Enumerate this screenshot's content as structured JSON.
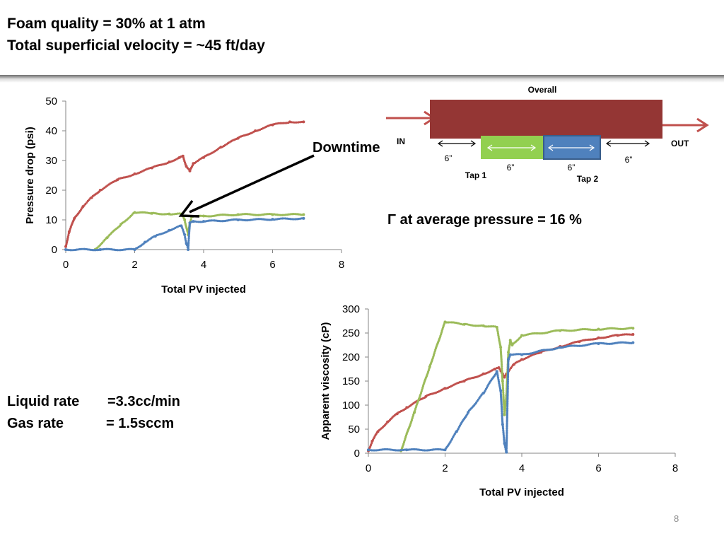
{
  "slide": {
    "title_line1": "Foam quality = 30% at 1 atm",
    "title_line2": "Total superficial velocity = ~45 ft/day",
    "gamma_text": "Γ at average pressure = 16 %",
    "liquid_rate_label": "Liquid rate",
    "liquid_rate_value": "=3.3cc/min",
    "gas_rate_label": "Gas rate",
    "gas_rate_value": "= 1.5sccm",
    "page_number": "8",
    "downtime_label": "Downtime"
  },
  "diagram": {
    "overall_label": "Overall",
    "in_label": "IN",
    "out_label": "OUT",
    "tap1_label": "Tap 1",
    "tap2_label": "Tap 2",
    "dim_labels": [
      "6”",
      "6”",
      "6”",
      "6”"
    ],
    "colors": {
      "core": "#943634",
      "tap1": "#92d050",
      "tap2": "#4f81bd",
      "arrow": "#c0504d"
    }
  },
  "chart_data": [
    {
      "type": "scatter",
      "xlabel": "Total PV injected",
      "ylabel": "Pressure drop (psi)",
      "xlim": [
        0,
        8
      ],
      "ylim": [
        0,
        50
      ],
      "xticks": [
        0,
        2,
        4,
        6,
        8
      ],
      "yticks": [
        0,
        10,
        20,
        30,
        40,
        50
      ],
      "grid": false,
      "annotation": "Downtime",
      "series": [
        {
          "color": "#c0504d",
          "points": [
            [
              0,
              1
            ],
            [
              0.1,
              6
            ],
            [
              0.25,
              10.5
            ],
            [
              0.5,
              14.5
            ],
            [
              0.75,
              17.5
            ],
            [
              1,
              20
            ],
            [
              1.5,
              23.5
            ],
            [
              2,
              25.5
            ],
            [
              2.5,
              27.5
            ],
            [
              3,
              29.5
            ],
            [
              3.3,
              31
            ],
            [
              3.4,
              31.5
            ],
            [
              3.5,
              28
            ],
            [
              3.6,
              26.5
            ],
            [
              3.7,
              29
            ],
            [
              4,
              31
            ],
            [
              4.5,
              34.5
            ],
            [
              5,
              37.5
            ],
            [
              5.5,
              40
            ],
            [
              6,
              42
            ],
            [
              6.5,
              43
            ],
            [
              6.9,
              43
            ]
          ]
        },
        {
          "color": "#9bbb59",
          "points": [
            [
              0.85,
              0
            ],
            [
              1.2,
              4
            ],
            [
              1.6,
              8.5
            ],
            [
              2,
              12.5
            ],
            [
              2.5,
              12.2
            ],
            [
              3,
              12
            ],
            [
              3.35,
              12
            ],
            [
              3.45,
              10
            ],
            [
              3.55,
              5
            ],
            [
              3.6,
              9
            ],
            [
              3.65,
              11
            ],
            [
              4,
              11.3
            ],
            [
              5,
              11.8
            ],
            [
              6,
              11.8
            ],
            [
              6.9,
              11.8
            ]
          ]
        },
        {
          "color": "#4f81bd",
          "points": [
            [
              0,
              0
            ],
            [
              1,
              0
            ],
            [
              2,
              0
            ],
            [
              2.3,
              2.5
            ],
            [
              2.6,
              4.5
            ],
            [
              3,
              6.5
            ],
            [
              3.35,
              8
            ],
            [
              3.45,
              5
            ],
            [
              3.5,
              2
            ],
            [
              3.55,
              0
            ],
            [
              3.6,
              9
            ],
            [
              3.7,
              9.5
            ],
            [
              4,
              9.5
            ],
            [
              5,
              10
            ],
            [
              6,
              10.2
            ],
            [
              6.9,
              10.5
            ]
          ]
        }
      ]
    },
    {
      "type": "scatter",
      "xlabel": "Total PV injected",
      "ylabel": "Apparent viscosity (cP)",
      "xlim": [
        0,
        8
      ],
      "ylim": [
        0,
        300
      ],
      "xticks": [
        0,
        2,
        4,
        6,
        8
      ],
      "yticks": [
        0,
        50,
        100,
        150,
        200,
        250,
        300
      ],
      "grid": false,
      "series": [
        {
          "color": "#c0504d",
          "points": [
            [
              0,
              5
            ],
            [
              0.1,
              25
            ],
            [
              0.25,
              45
            ],
            [
              0.5,
              65
            ],
            [
              0.75,
              82
            ],
            [
              1,
              95
            ],
            [
              1.5,
              118
            ],
            [
              2,
              135
            ],
            [
              2.5,
              150
            ],
            [
              3,
              165
            ],
            [
              3.3,
              175
            ],
            [
              3.4,
              178
            ],
            [
              3.5,
              165
            ],
            [
              3.55,
              158
            ],
            [
              3.6,
              165
            ],
            [
              3.8,
              185
            ],
            [
              4,
              195
            ],
            [
              4.5,
              210
            ],
            [
              5,
              222
            ],
            [
              5.5,
              232
            ],
            [
              6,
              240
            ],
            [
              6.5,
              245
            ],
            [
              6.9,
              247
            ]
          ]
        },
        {
          "color": "#9bbb59",
          "points": [
            [
              0.85,
              5
            ],
            [
              1.2,
              85
            ],
            [
              1.6,
              180
            ],
            [
              2,
              273
            ],
            [
              2.5,
              268
            ],
            [
              3,
              265
            ],
            [
              3.35,
              262
            ],
            [
              3.45,
              220
            ],
            [
              3.5,
              150
            ],
            [
              3.55,
              80
            ],
            [
              3.6,
              120
            ],
            [
              3.65,
              210
            ],
            [
              3.7,
              235
            ],
            [
              3.75,
              225
            ],
            [
              4,
              245
            ],
            [
              5,
              255
            ],
            [
              6,
              258
            ],
            [
              6.9,
              260
            ]
          ]
        },
        {
          "color": "#4f81bd",
          "points": [
            [
              0,
              7
            ],
            [
              1,
              7
            ],
            [
              2,
              7
            ],
            [
              2.3,
              45
            ],
            [
              2.6,
              85
            ],
            [
              3,
              125
            ],
            [
              3.35,
              170
            ],
            [
              3.45,
              130
            ],
            [
              3.5,
              60
            ],
            [
              3.55,
              20
            ],
            [
              3.6,
              2
            ],
            [
              3.65,
              195
            ],
            [
              3.7,
              205
            ],
            [
              4,
              205
            ],
            [
              5,
              220
            ],
            [
              6,
              228
            ],
            [
              6.9,
              230
            ]
          ]
        }
      ]
    }
  ]
}
